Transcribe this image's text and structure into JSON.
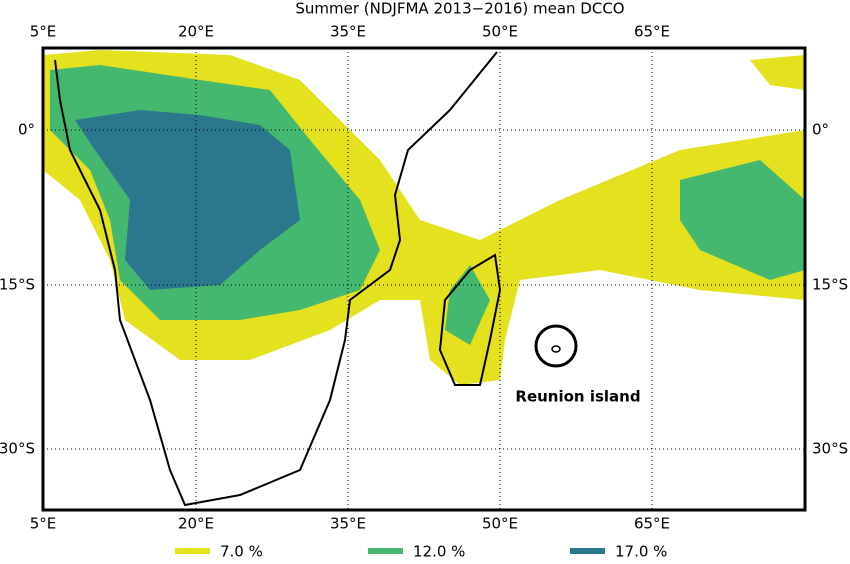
{
  "title": "Summer (NDJFMA 2013−2016) mean DCCO",
  "axes": {
    "top": [
      "5°E",
      "20°E",
      "35°E",
      "50°E",
      "65°E"
    ],
    "bottom": [
      "5°E",
      "20°E",
      "35°E",
      "50°E",
      "65°E"
    ],
    "left": [
      "0°",
      "15°S",
      "30°S"
    ],
    "right": [
      "0°",
      "15°S",
      "30°S"
    ]
  },
  "annotation": "Reunion island",
  "legend": [
    {
      "label": "7.0 %",
      "color": "#e4e11e"
    },
    {
      "label": "12.0 %",
      "color": "#45b86f"
    },
    {
      "label": "17.0 %",
      "color": "#2b788d"
    }
  ]
}
